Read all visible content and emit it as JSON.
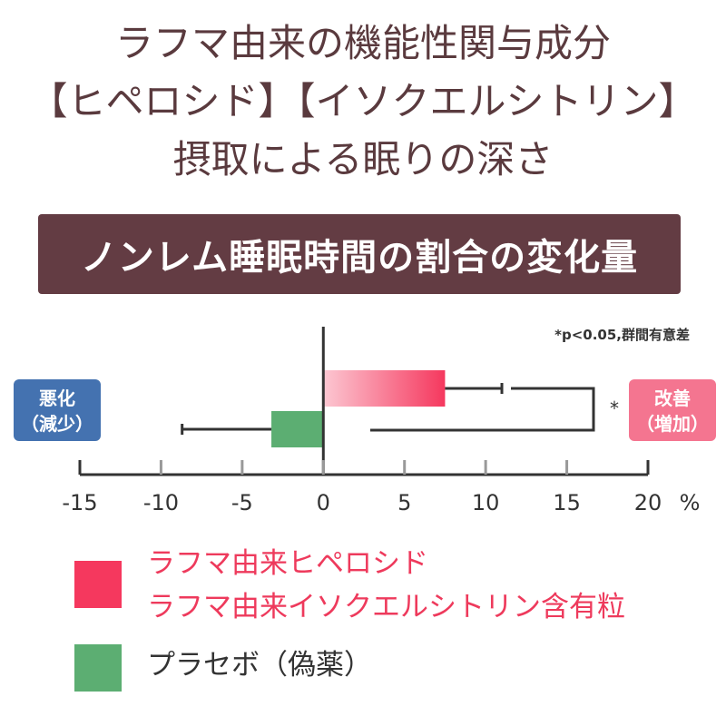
{
  "header": {
    "line1": "ラフマ由来の機能性関与成分",
    "line2": "【ヒペロシド】【イソクエルシトリン】",
    "line3": "摂取による眠りの深さ"
  },
  "banner": {
    "text": "ノンレム睡眠時間の割合の変化量"
  },
  "chart_data": {
    "type": "bar",
    "orientation": "horizontal",
    "title": "ノンレム睡眠時間の割合の変化量",
    "xlim": [
      -15,
      20
    ],
    "x_ticks": [
      -15,
      -10,
      -5,
      0,
      5,
      10,
      15,
      20
    ],
    "x_unit": "%",
    "grid": false,
    "series": [
      {
        "name": "ラフマ由来ヒペロシド ラフマ由来イソクエルシトリン含有粒",
        "value": 7.5,
        "error": 3.5,
        "color": "#f5385e"
      },
      {
        "name": "プラセボ（偽薬）",
        "value": -3.2,
        "error": 5.5,
        "color": "#5cae72"
      }
    ],
    "significance": {
      "marker": "*",
      "note": "*p<0.05,群間有意差"
    },
    "left_label": {
      "line1": "悪化",
      "line2": "（減少）",
      "color": "#4472b0"
    },
    "right_label": {
      "line1": "改善",
      "line2": "（増加）",
      "color": "#f47590"
    }
  },
  "legend": {
    "items": [
      {
        "line1": "ラフマ由来ヒペロシド",
        "line2": "ラフマ由来イソクエルシトリン含有粒",
        "color": "#f5385e"
      },
      {
        "line1": "プラセボ（偽薬）",
        "color": "#5cae72"
      }
    ]
  }
}
